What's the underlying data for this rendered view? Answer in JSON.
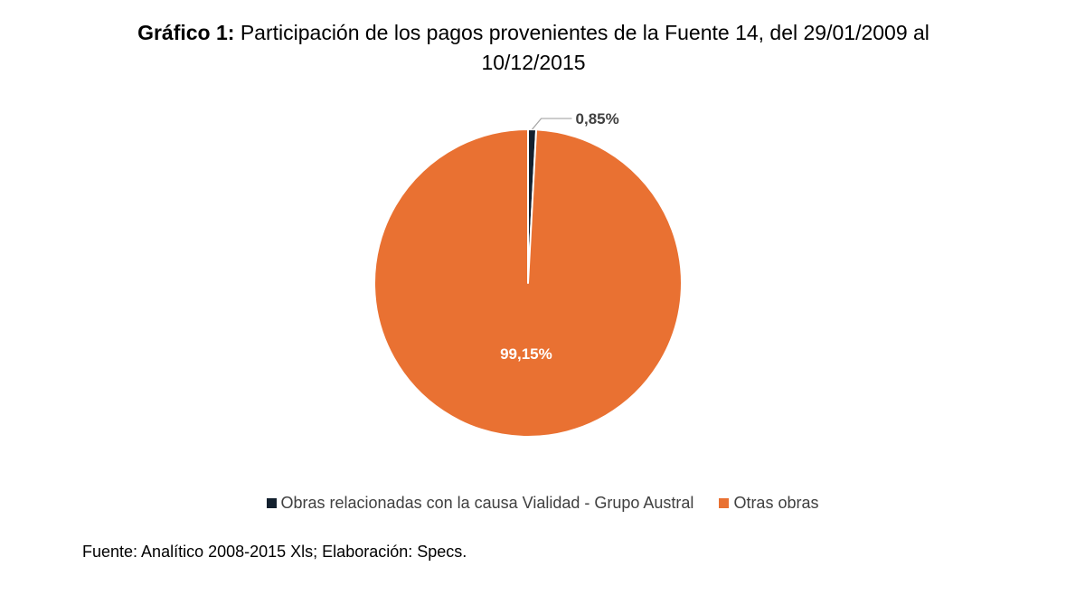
{
  "chart_data": {
    "type": "pie",
    "title_prefix": "Gráfico 1:",
    "title_line1": "Participación de los pagos provenientes de la Fuente 14, del 29/01/2009 al",
    "title_line2": "10/12/2015",
    "slices": [
      {
        "name": "Obras relacionadas con la causa Vialidad - Grupo Austral",
        "value": 0.85,
        "label": "0,85%",
        "color": "#13202e"
      },
      {
        "name": "Otras obras",
        "value": 99.15,
        "label": "99,15%",
        "color": "#e97132"
      }
    ],
    "start_angle": "12 o'clock",
    "direction": "clockwise",
    "legend_position": "bottom",
    "source": "Fuente: Analítico 2008-2015 Xls; Elaboración: Specs."
  }
}
